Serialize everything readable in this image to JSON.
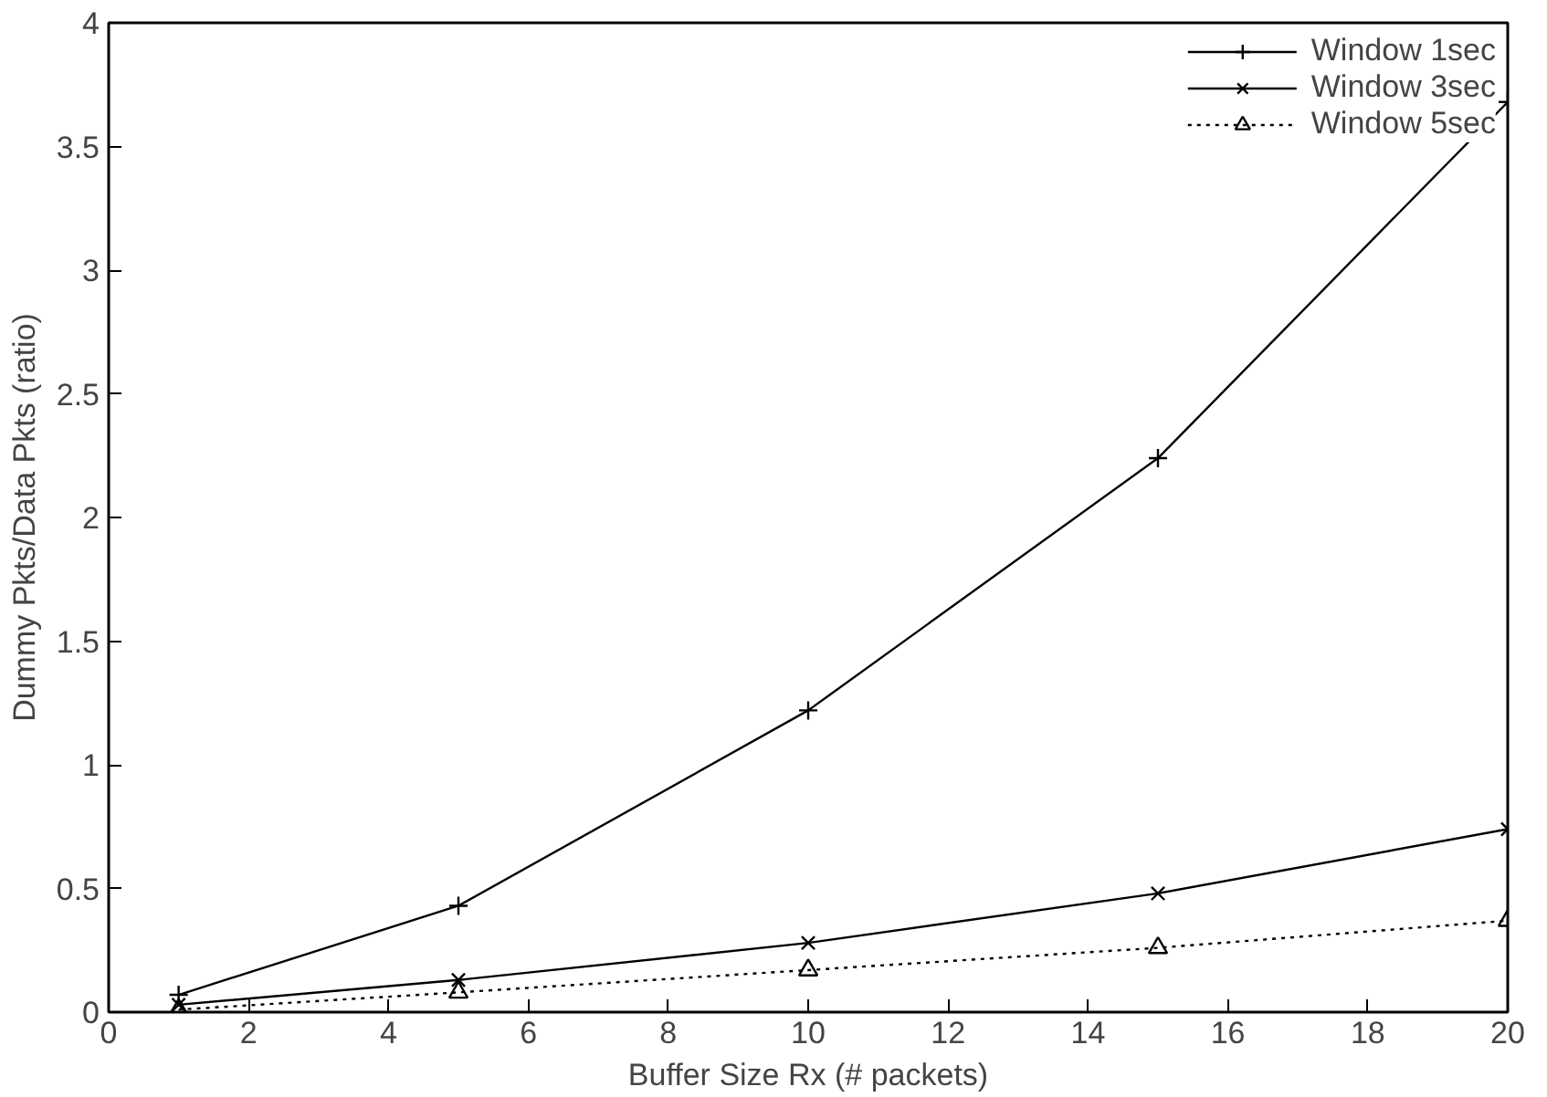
{
  "chart_data": {
    "type": "line",
    "xlabel": "Buffer Size Rx (# packets)",
    "ylabel": "Dummy Pkts/Data Pkts (ratio)",
    "x": [
      1,
      5,
      10,
      15,
      20
    ],
    "series": [
      {
        "name": "Window 1sec",
        "color": "#000000",
        "marker": "cross",
        "line_style": "solid",
        "values": [
          0.07,
          0.43,
          1.22,
          2.24,
          3.68
        ]
      },
      {
        "name": "Window 3sec",
        "color": "#000000",
        "marker": "x",
        "line_style": "solid",
        "values": [
          0.03,
          0.13,
          0.28,
          0.48,
          0.74
        ]
      },
      {
        "name": "Window 5sec",
        "color": "#000000",
        "marker": "triangle",
        "line_style": "dotted",
        "values": [
          0.01,
          0.08,
          0.17,
          0.26,
          0.37
        ]
      }
    ],
    "xlim": [
      0,
      20
    ],
    "ylim": [
      0,
      4
    ],
    "xticks": [
      0,
      2,
      4,
      6,
      8,
      10,
      12,
      14,
      16,
      18,
      20
    ],
    "yticks": [
      0,
      0.5,
      1,
      1.5,
      2,
      2.5,
      3,
      3.5,
      4
    ],
    "grid": false,
    "legend": "top right"
  }
}
